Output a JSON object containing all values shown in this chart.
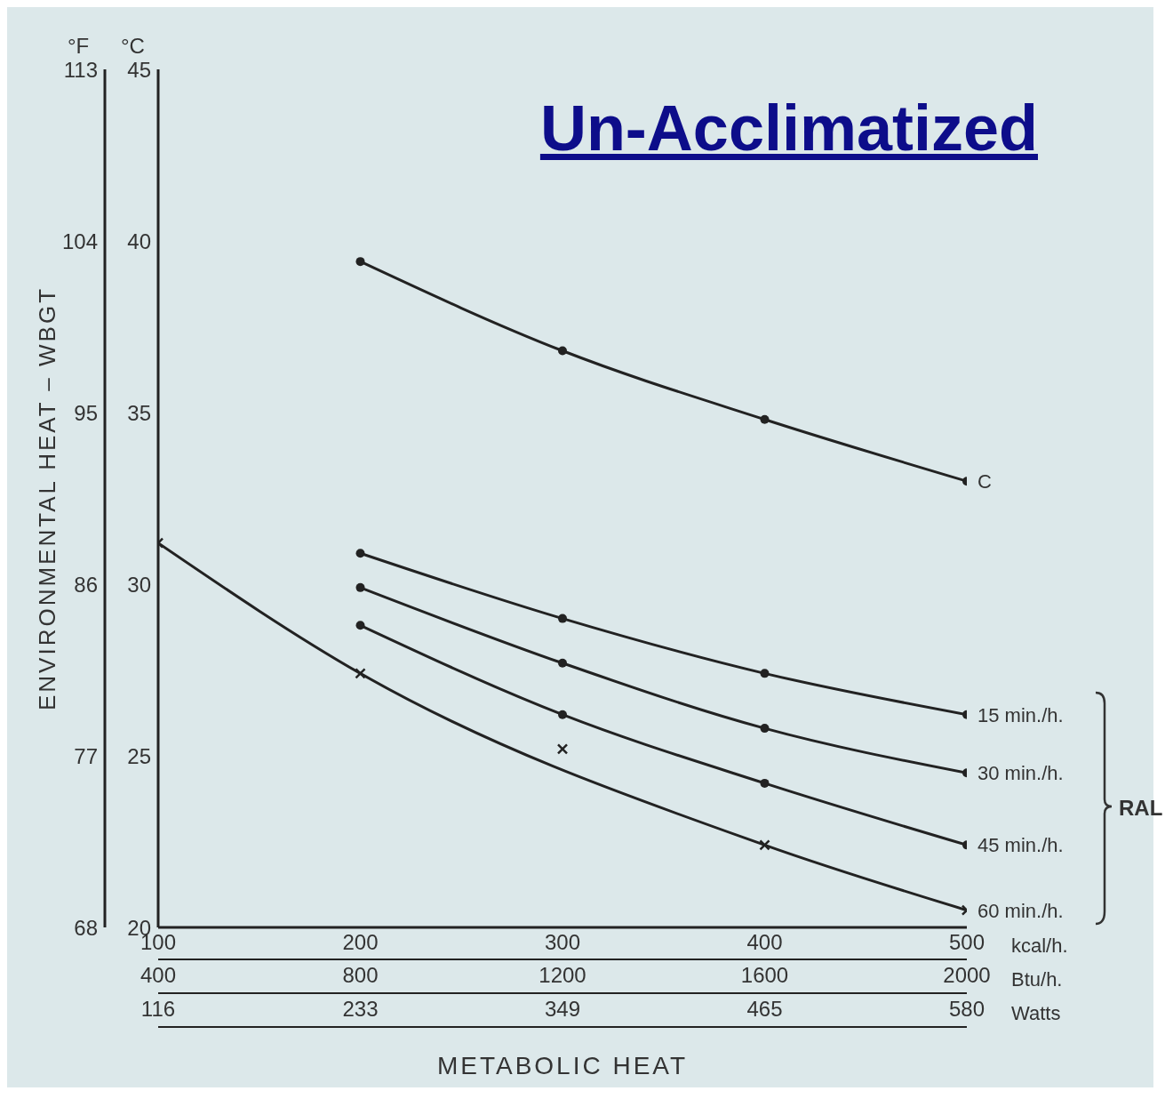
{
  "chart_data": {
    "type": "line",
    "title": "Un-Acclimatized",
    "xlabel": "METABOLIC HEAT",
    "y2label": "ENVIRONMENTAL HEAT – WBGT",
    "annotations": [
      "°F",
      "°C",
      "kcal/h.",
      "Btu/h.",
      "Watts",
      "RAL",
      "116",
      "233",
      "349",
      "465",
      "580"
    ],
    "xlim": [
      100,
      500
    ],
    "xticks": [
      100,
      200,
      300,
      400,
      500
    ],
    "x2lim": [
      400,
      2000
    ],
    "x2ticks": [
      400,
      800,
      1200,
      1600,
      2000
    ],
    "ylim": [
      20,
      45
    ],
    "yticks": [
      20,
      25,
      30,
      35,
      40,
      45
    ],
    "y2lim": [
      68,
      113
    ],
    "y2ticks": [
      68,
      77,
      86,
      95,
      104,
      113
    ],
    "line_style": "solid",
    "series": [
      {
        "name": "C",
        "color": "#222222",
        "marker": "circle",
        "x": [
          200,
          300,
          400,
          500
        ],
        "values": [
          39.4,
          36.8,
          34.8,
          33.0
        ]
      },
      {
        "name": "15 min./h.",
        "color": "#222222",
        "marker": "circle",
        "x": [
          200,
          300,
          400,
          500
        ],
        "values": [
          30.9,
          29.0,
          27.4,
          26.2
        ]
      },
      {
        "name": "30 min./h.",
        "color": "#222222",
        "marker": "circle",
        "x": [
          200,
          300,
          400,
          500
        ],
        "values": [
          29.9,
          27.7,
          25.8,
          24.5
        ]
      },
      {
        "name": "45 min./h.",
        "color": "#222222",
        "marker": "circle",
        "x": [
          200,
          300,
          400,
          500
        ],
        "values": [
          28.8,
          26.2,
          24.2,
          22.4
        ]
      },
      {
        "name": "60 min./h.",
        "color": "#222222",
        "marker": "cross",
        "x": [
          100,
          200,
          400,
          500
        ],
        "values": [
          31.2,
          27.4,
          22.4,
          20.5
        ]
      },
      {
        "type": "scatter",
        "color": "#222222",
        "marker": "cross",
        "x": [
          300
        ],
        "values": [
          25.2
        ]
      }
    ]
  }
}
